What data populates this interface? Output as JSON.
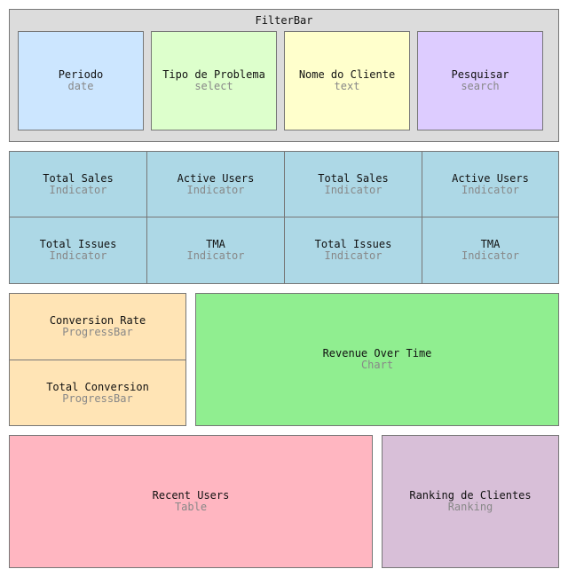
{
  "filterbar": {
    "title": "FilterBar",
    "filters": [
      {
        "label": "Periodo",
        "type": "date",
        "color": "#cce6ff"
      },
      {
        "label": "Tipo de Problema",
        "type": "select",
        "color": "#ddffcc"
      },
      {
        "label": "Nome do Cliente",
        "type": "text",
        "color": "#ffffcc"
      },
      {
        "label": "Pesquisar",
        "type": "search",
        "color": "#ddccff"
      }
    ]
  },
  "indicators": [
    {
      "label": "Total Sales",
      "type": "Indicator"
    },
    {
      "label": "Active Users",
      "type": "Indicator"
    },
    {
      "label": "Total Sales",
      "type": "Indicator"
    },
    {
      "label": "Active Users",
      "type": "Indicator"
    },
    {
      "label": "Total Issues",
      "type": "Indicator"
    },
    {
      "label": "TMA",
      "type": "Indicator"
    },
    {
      "label": "Total Issues",
      "type": "Indicator"
    },
    {
      "label": "TMA",
      "type": "Indicator"
    }
  ],
  "progress": [
    {
      "label": "Conversion Rate",
      "type": "ProgressBar"
    },
    {
      "label": "Total Conversion",
      "type": "ProgressBar"
    }
  ],
  "chart": {
    "label": "Revenue Over Time",
    "type": "Chart"
  },
  "table": {
    "label": "Recent Users",
    "type": "Table"
  },
  "ranking": {
    "label": "Ranking de Clientes",
    "type": "Ranking"
  },
  "colors": {
    "filterbar_bg": "#dcdcdc",
    "indicator": "#add8e6",
    "progress": "#ffe4b5",
    "chart": "#90ee90",
    "table": "#ffb6c1",
    "ranking": "#d8bfd8",
    "border": "#777777"
  }
}
